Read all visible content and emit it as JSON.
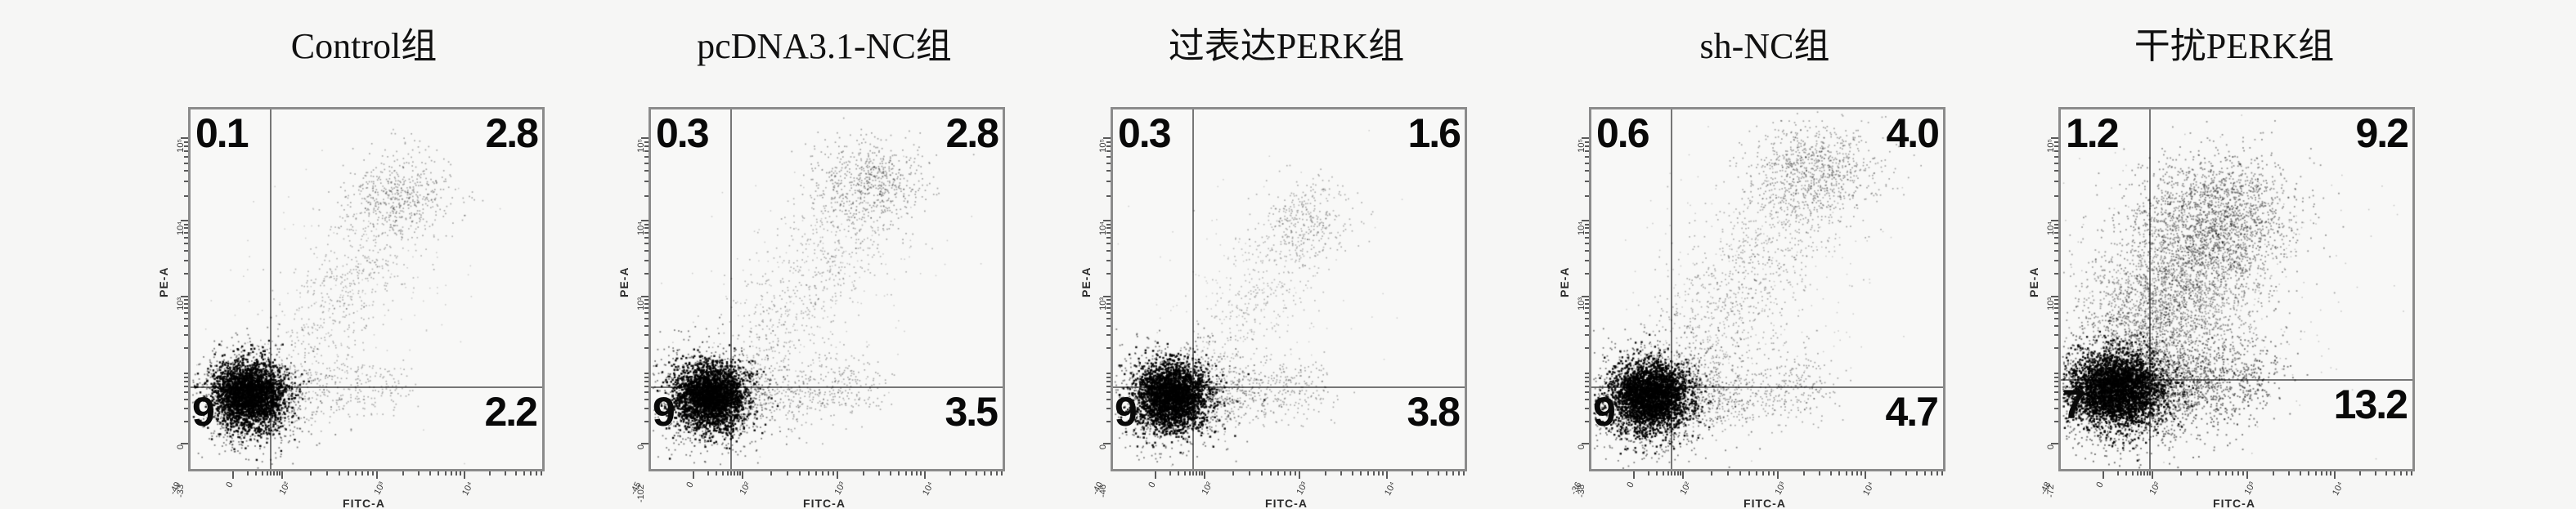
{
  "chart_data": {
    "type": "scatter",
    "subtype": "flow_cytometry_quadrant_plots",
    "description": "Annexin V-FITC / PE apoptosis dot plots, five treatment groups, quadrant percentages shown",
    "xlabel": "FITC-A",
    "ylabel": "PE-A",
    "x_scale": "biexponential",
    "y_scale": "biexponential",
    "x_tick_labels": [
      "0",
      "10²",
      "10³",
      "10⁴"
    ],
    "y_tick_labels": [
      "10⁵",
      "10⁴",
      "10³",
      "0"
    ],
    "legend_position": "none",
    "grid": false,
    "panels": [
      {
        "title": "Control组",
        "quadrants": {
          "upper_left": "0.1",
          "upper_right": "2.8",
          "lower_left_visible": "9",
          "lower_right": "2.2"
        },
        "x_min_tick": "-49",
        "y_min_tick": "-33",
        "gate": {
          "x_frac": 0.225,
          "y_frac": 0.77
        },
        "seed": 7,
        "clusters": [
          {
            "t": "g",
            "cx": 0.165,
            "cy": 0.795,
            "rx": 0.05,
            "ry": 0.045,
            "n": 2600,
            "a": 0.95,
            "r": 2.4
          },
          {
            "t": "g",
            "cx": 0.17,
            "cy": 0.8,
            "rx": 0.085,
            "ry": 0.07,
            "n": 1100,
            "a": 0.5,
            "r": 1.8
          },
          {
            "t": "d",
            "x0": 0.24,
            "y0": 0.8,
            "x1": 0.6,
            "y1": 0.77,
            "s": 0.04,
            "n": 300,
            "a": 0.3,
            "r": 1.7
          },
          {
            "t": "d",
            "x0": 0.3,
            "y0": 0.68,
            "x1": 0.58,
            "y1": 0.3,
            "s": 0.065,
            "n": 520,
            "a": 0.28,
            "r": 1.7
          },
          {
            "t": "g",
            "cx": 0.6,
            "cy": 0.235,
            "rx": 0.075,
            "ry": 0.06,
            "n": 480,
            "a": 0.33,
            "r": 1.7
          },
          {
            "t": "g",
            "cx": 0.42,
            "cy": 0.52,
            "rx": 0.18,
            "ry": 0.16,
            "n": 140,
            "a": 0.18,
            "r": 1.6
          }
        ]
      },
      {
        "title": "pcDNA3.1-NC组",
        "quadrants": {
          "upper_left": "0.3",
          "upper_right": "2.8",
          "lower_left_visible": "9",
          "lower_right": "3.5"
        },
        "x_min_tick": "-45",
        "y_min_tick": "-102",
        "gate": {
          "x_frac": 0.225,
          "y_frac": 0.77
        },
        "seed": 17,
        "clusters": [
          {
            "t": "g",
            "cx": 0.165,
            "cy": 0.795,
            "rx": 0.05,
            "ry": 0.045,
            "n": 2600,
            "a": 0.95,
            "r": 2.4
          },
          {
            "t": "g",
            "cx": 0.17,
            "cy": 0.8,
            "rx": 0.09,
            "ry": 0.072,
            "n": 1200,
            "a": 0.5,
            "r": 1.8
          },
          {
            "t": "d",
            "x0": 0.24,
            "y0": 0.8,
            "x1": 0.62,
            "y1": 0.77,
            "s": 0.042,
            "n": 420,
            "a": 0.32,
            "r": 1.7
          },
          {
            "t": "d",
            "x0": 0.3,
            "y0": 0.68,
            "x1": 0.6,
            "y1": 0.28,
            "s": 0.07,
            "n": 560,
            "a": 0.28,
            "r": 1.7
          },
          {
            "t": "g",
            "cx": 0.62,
            "cy": 0.2,
            "rx": 0.08,
            "ry": 0.065,
            "n": 620,
            "a": 0.35,
            "r": 1.7
          },
          {
            "t": "g",
            "cx": 0.44,
            "cy": 0.5,
            "rx": 0.19,
            "ry": 0.17,
            "n": 160,
            "a": 0.18,
            "r": 1.6
          }
        ]
      },
      {
        "title": "过表达PERK组",
        "quadrants": {
          "upper_left": "0.3",
          "upper_right": "1.6",
          "lower_left_visible": "9",
          "lower_right": "3.8"
        },
        "x_min_tick": "-40",
        "y_min_tick": "-46",
        "gate": {
          "x_frac": 0.225,
          "y_frac": 0.77
        },
        "seed": 27,
        "clusters": [
          {
            "t": "g",
            "cx": 0.165,
            "cy": 0.795,
            "rx": 0.05,
            "ry": 0.045,
            "n": 2600,
            "a": 0.95,
            "r": 2.4
          },
          {
            "t": "g",
            "cx": 0.17,
            "cy": 0.8,
            "rx": 0.085,
            "ry": 0.07,
            "n": 1100,
            "a": 0.5,
            "r": 1.8
          },
          {
            "t": "d",
            "x0": 0.24,
            "y0": 0.8,
            "x1": 0.58,
            "y1": 0.77,
            "s": 0.042,
            "n": 470,
            "a": 0.32,
            "r": 1.7
          },
          {
            "t": "d",
            "x0": 0.3,
            "y0": 0.66,
            "x1": 0.55,
            "y1": 0.32,
            "s": 0.06,
            "n": 360,
            "a": 0.25,
            "r": 1.7
          },
          {
            "t": "g",
            "cx": 0.55,
            "cy": 0.3,
            "rx": 0.07,
            "ry": 0.06,
            "n": 280,
            "a": 0.3,
            "r": 1.7
          },
          {
            "t": "g",
            "cx": 0.4,
            "cy": 0.52,
            "rx": 0.17,
            "ry": 0.16,
            "n": 120,
            "a": 0.16,
            "r": 1.6
          }
        ]
      },
      {
        "title": "sh-NC组",
        "quadrants": {
          "upper_left": "0.6",
          "upper_right": "4.0",
          "lower_left_visible": "9",
          "lower_right": "4.7"
        },
        "x_min_tick": "-36",
        "y_min_tick": "-38",
        "gate": {
          "x_frac": 0.225,
          "y_frac": 0.77
        },
        "seed": 37,
        "clusters": [
          {
            "t": "g",
            "cx": 0.165,
            "cy": 0.795,
            "rx": 0.055,
            "ry": 0.047,
            "n": 2800,
            "a": 0.95,
            "r": 2.4
          },
          {
            "t": "g",
            "cx": 0.18,
            "cy": 0.8,
            "rx": 0.1,
            "ry": 0.08,
            "n": 1400,
            "a": 0.5,
            "r": 1.8
          },
          {
            "t": "d",
            "x0": 0.25,
            "y0": 0.8,
            "x1": 0.65,
            "y1": 0.76,
            "s": 0.045,
            "n": 520,
            "a": 0.35,
            "r": 1.7
          },
          {
            "t": "d",
            "x0": 0.26,
            "y0": 0.7,
            "x1": 0.6,
            "y1": 0.25,
            "s": 0.08,
            "n": 850,
            "a": 0.3,
            "r": 1.7
          },
          {
            "t": "g",
            "cx": 0.63,
            "cy": 0.17,
            "rx": 0.095,
            "ry": 0.07,
            "n": 850,
            "a": 0.35,
            "r": 1.7
          },
          {
            "t": "g",
            "cx": 0.45,
            "cy": 0.48,
            "rx": 0.2,
            "ry": 0.18,
            "n": 200,
            "a": 0.18,
            "r": 1.6
          }
        ]
      },
      {
        "title": "干扰PERK组",
        "quadrants": {
          "upper_left": "1.2",
          "upper_right": "9.2",
          "lower_left_visible": "7",
          "lower_right": "13.2"
        },
        "x_min_tick": "-48",
        "y_min_tick": "-72",
        "gate": {
          "x_frac": 0.25,
          "y_frac": 0.75
        },
        "seed": 47,
        "clusters": [
          {
            "t": "g",
            "cx": 0.155,
            "cy": 0.775,
            "rx": 0.065,
            "ry": 0.05,
            "n": 3000,
            "a": 0.95,
            "r": 2.4
          },
          {
            "t": "g",
            "cx": 0.17,
            "cy": 0.78,
            "rx": 0.115,
            "ry": 0.085,
            "n": 1700,
            "a": 0.55,
            "r": 1.9
          },
          {
            "t": "d",
            "x0": 0.22,
            "y0": 0.78,
            "x1": 0.58,
            "y1": 0.74,
            "s": 0.055,
            "n": 900,
            "a": 0.5,
            "r": 1.9
          },
          {
            "t": "d",
            "x0": 0.18,
            "y0": 0.7,
            "x1": 0.5,
            "y1": 0.28,
            "s": 0.095,
            "n": 2400,
            "a": 0.4,
            "r": 1.8
          },
          {
            "t": "g",
            "cx": 0.43,
            "cy": 0.28,
            "rx": 0.115,
            "ry": 0.085,
            "n": 1100,
            "a": 0.42,
            "r": 1.8
          },
          {
            "t": "g",
            "cx": 0.3,
            "cy": 0.52,
            "rx": 0.13,
            "ry": 0.11,
            "n": 800,
            "a": 0.35,
            "r": 1.8
          },
          {
            "t": "g",
            "cx": 0.45,
            "cy": 0.45,
            "rx": 0.22,
            "ry": 0.2,
            "n": 250,
            "a": 0.2,
            "r": 1.6
          }
        ]
      }
    ]
  }
}
